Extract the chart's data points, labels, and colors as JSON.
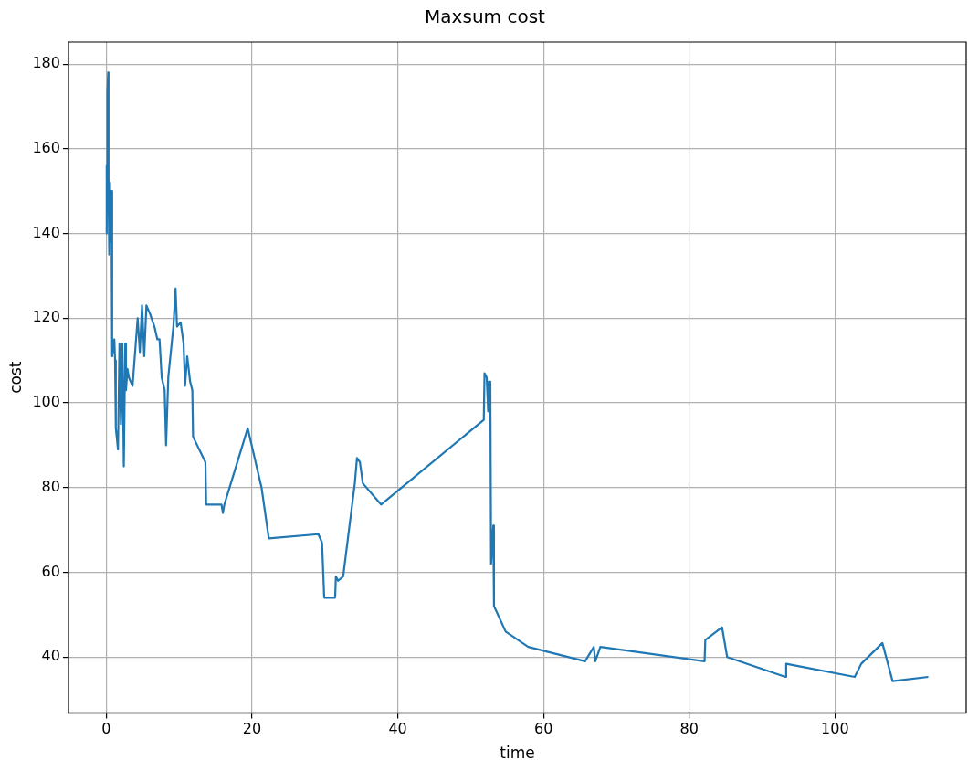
{
  "chart_data": {
    "type": "line",
    "title": "Maxsum cost",
    "xlabel": "time",
    "ylabel": "cost",
    "series": [
      {
        "color": "#1f77b4",
        "x": [
          0,
          0.05,
          0.1,
          0.15,
          0.25,
          0.3,
          0.4,
          0.5,
          0.6,
          0.7,
          0.8,
          1.1,
          1.2,
          1.3,
          1.6,
          1.8,
          2.0,
          2.2,
          2.4,
          2.6,
          2.7,
          2.9,
          3.1,
          3.6,
          4.3,
          4.6,
          4.9,
          5.2,
          5.5,
          6.0,
          6.6,
          7.0,
          7.3,
          7.6,
          8.0,
          8.2,
          8.5,
          9.2,
          9.5,
          9.7,
          10.2,
          10.6,
          10.8,
          11.1,
          11.5,
          11.8,
          11.9,
          13.6,
          13.7,
          15.8,
          16.0,
          16.2,
          19.4,
          21.3,
          22.3,
          29.1,
          29.6,
          29.9,
          31.4,
          31.5,
          31.8,
          32.5,
          34.1,
          34.4,
          34.8,
          35.2,
          37.7,
          51.8,
          51.9,
          52.2,
          52.4,
          52.5,
          52.7,
          52.8,
          53.1,
          53.2,
          54.8,
          57.9,
          65.7,
          66.9,
          67.1,
          67.8,
          82.1,
          82.2,
          84.5,
          85.2,
          93.2,
          93.3,
          102.7,
          103.6,
          106.5,
          107.9,
          112.8
        ],
        "values": [
          140,
          156,
          145,
          173,
          178,
          150,
          135,
          152,
          138,
          150,
          111,
          115,
          110,
          94,
          89,
          114,
          95,
          114,
          85,
          114,
          103,
          108,
          106,
          104,
          120,
          112,
          123,
          111,
          123,
          121,
          118,
          115,
          115,
          106,
          103,
          90,
          106,
          118,
          127,
          118,
          119,
          114,
          104,
          111,
          105,
          103,
          92,
          86,
          76,
          76,
          74,
          76,
          94,
          80,
          68,
          69,
          67,
          54,
          54,
          59,
          58,
          59,
          81,
          87,
          86,
          81,
          76,
          96,
          107,
          106,
          98,
          105,
          105,
          62,
          71,
          52,
          46,
          42.4,
          39,
          42.4,
          39,
          42.4,
          39,
          44,
          47,
          40,
          35.3,
          38.4,
          35.3,
          38.4,
          43.3,
          34.3,
          35.3
        ]
      }
    ],
    "xlim": [
      -5.2,
      118
    ],
    "ylim": [
      26.8,
      185.2
    ],
    "xticks": [
      0,
      20,
      40,
      60,
      80,
      100
    ],
    "yticks": [
      40,
      60,
      80,
      100,
      120,
      140,
      160,
      180
    ],
    "grid": true,
    "marker": "none",
    "line_style": "solid",
    "legend": false
  }
}
